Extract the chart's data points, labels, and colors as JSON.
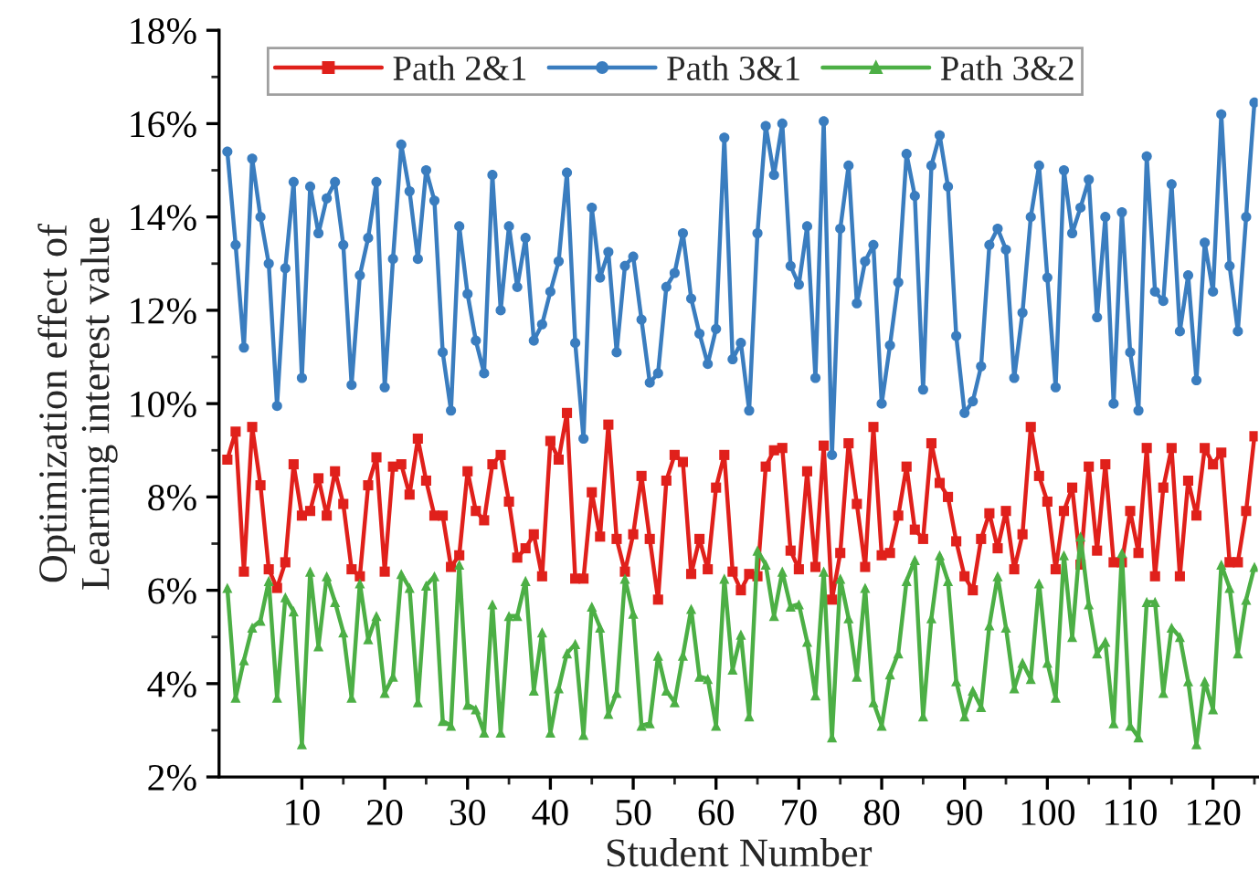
{
  "chart_data": {
    "type": "line",
    "xlabel": "Student Number",
    "ylabel": "Optimization effect of\nLearning interest value",
    "x": [
      1,
      2,
      3,
      4,
      5,
      6,
      7,
      8,
      9,
      10,
      11,
      12,
      13,
      14,
      15,
      16,
      17,
      18,
      19,
      20,
      21,
      22,
      23,
      24,
      25,
      26,
      27,
      28,
      29,
      30,
      31,
      32,
      33,
      34,
      35,
      36,
      37,
      38,
      39,
      40,
      41,
      42,
      43,
      44,
      45,
      46,
      47,
      48,
      49,
      50,
      51,
      52,
      53,
      54,
      55,
      56,
      57,
      58,
      59,
      60,
      61,
      62,
      63,
      64,
      65,
      66,
      67,
      68,
      69,
      70,
      71,
      72,
      73,
      74,
      75,
      76,
      77,
      78,
      79,
      80,
      81,
      82,
      83,
      84,
      85,
      86,
      87,
      88,
      89,
      90,
      91,
      92,
      93,
      94,
      95,
      96,
      97,
      98,
      99,
      100,
      101,
      102,
      103,
      104,
      105,
      106,
      107,
      108,
      109,
      110,
      111,
      112,
      113,
      114,
      115,
      116,
      117,
      118,
      119,
      120,
      121,
      122,
      123,
      124,
      125
    ],
    "series": [
      {
        "name": "Path 2&1",
        "color": "#e0201b",
        "marker": "square",
        "values": [
          8.8,
          9.4,
          6.4,
          9.5,
          8.25,
          6.45,
          6.05,
          6.6,
          8.7,
          7.6,
          7.7,
          8.4,
          7.6,
          8.55,
          7.85,
          6.45,
          6.3,
          8.25,
          8.85,
          6.4,
          8.65,
          8.7,
          8.05,
          9.25,
          8.35,
          7.6,
          7.6,
          6.5,
          6.75,
          8.55,
          7.7,
          7.5,
          8.7,
          8.9,
          7.9,
          6.7,
          6.9,
          7.2,
          6.3,
          9.2,
          8.8,
          9.8,
          6.25,
          6.25,
          8.1,
          7.15,
          9.55,
          7.1,
          6.4,
          7.2,
          8.45,
          7.1,
          5.8,
          8.35,
          8.9,
          8.75,
          6.35,
          7.1,
          6.45,
          8.2,
          8.9,
          6.4,
          6.0,
          6.35,
          6.3,
          8.65,
          9.0,
          9.05,
          6.85,
          6.45,
          8.55,
          6.5,
          9.1,
          5.8,
          6.8,
          9.15,
          7.85,
          6.5,
          9.5,
          6.75,
          6.8,
          7.6,
          8.65,
          7.3,
          7.1,
          9.15,
          8.3,
          8.0,
          7.05,
          6.3,
          6.0,
          7.1,
          7.65,
          6.9,
          7.7,
          6.45,
          7.2,
          9.5,
          8.45,
          7.9,
          6.45,
          7.7,
          8.2,
          6.55,
          8.65,
          6.85,
          8.7,
          6.6,
          6.6,
          7.7,
          6.8,
          9.05,
          6.3,
          8.2,
          9.05,
          6.3,
          8.35,
          7.6,
          9.05,
          8.7,
          8.95,
          6.6,
          6.6,
          7.7,
          9.3
        ]
      },
      {
        "name": "Path 3&1",
        "color": "#3a7dbf",
        "marker": "circle",
        "values": [
          15.4,
          13.4,
          11.2,
          15.25,
          14.0,
          13.0,
          9.95,
          12.9,
          14.75,
          10.55,
          14.65,
          13.65,
          14.4,
          14.75,
          13.4,
          10.4,
          12.75,
          13.55,
          14.75,
          10.35,
          13.1,
          15.55,
          14.55,
          13.1,
          15.0,
          14.35,
          11.1,
          9.85,
          13.8,
          12.35,
          11.35,
          10.65,
          14.9,
          12.0,
          13.8,
          12.5,
          13.55,
          11.35,
          11.7,
          12.4,
          13.05,
          14.95,
          11.3,
          9.25,
          14.2,
          12.7,
          13.25,
          11.1,
          12.95,
          13.15,
          11.8,
          10.45,
          10.65,
          12.5,
          12.8,
          13.65,
          12.25,
          11.5,
          10.85,
          11.6,
          15.7,
          10.95,
          11.3,
          9.85,
          13.65,
          15.95,
          14.9,
          16.0,
          12.95,
          12.55,
          13.8,
          10.55,
          16.05,
          8.9,
          13.75,
          15.1,
          12.15,
          13.05,
          13.4,
          10.0,
          11.25,
          12.6,
          15.35,
          14.45,
          10.3,
          15.1,
          15.75,
          14.65,
          11.45,
          9.8,
          10.05,
          10.8,
          13.4,
          13.75,
          13.3,
          10.55,
          11.95,
          14.0,
          15.1,
          12.7,
          10.35,
          15.0,
          13.65,
          14.2,
          14.8,
          11.85,
          14.0,
          10.0,
          14.1,
          11.1,
          9.85,
          15.3,
          12.4,
          12.2,
          14.7,
          11.55,
          12.75,
          10.5,
          13.45,
          12.4,
          16.2,
          12.95,
          11.55,
          14.0,
          16.45
        ]
      },
      {
        "name": "Path 3&2",
        "color": "#4caf45",
        "marker": "triangle",
        "values": [
          6.05,
          3.7,
          4.5,
          5.2,
          5.35,
          6.2,
          3.7,
          5.85,
          5.55,
          2.7,
          6.4,
          4.8,
          6.3,
          5.75,
          5.1,
          3.7,
          6.15,
          4.95,
          5.45,
          3.8,
          4.15,
          6.35,
          6.05,
          3.6,
          6.1,
          6.3,
          3.2,
          3.1,
          6.55,
          3.55,
          3.45,
          2.95,
          5.7,
          2.95,
          5.45,
          5.45,
          6.2,
          3.85,
          5.1,
          2.95,
          3.9,
          4.65,
          4.85,
          2.9,
          5.65,
          5.2,
          3.35,
          3.8,
          6.25,
          5.5,
          3.1,
          3.15,
          4.6,
          3.85,
          3.6,
          4.6,
          5.6,
          4.15,
          4.1,
          3.1,
          6.25,
          4.3,
          5.05,
          3.3,
          6.85,
          6.55,
          5.45,
          6.4,
          5.65,
          5.7,
          4.9,
          3.75,
          6.4,
          2.85,
          6.25,
          5.4,
          4.15,
          6.05,
          3.6,
          3.1,
          4.2,
          4.65,
          6.2,
          6.65,
          3.3,
          5.4,
          6.75,
          6.2,
          4.05,
          3.3,
          3.85,
          3.5,
          5.25,
          6.3,
          5.2,
          3.9,
          4.45,
          4.1,
          6.15,
          4.45,
          3.7,
          6.75,
          5.0,
          7.15,
          5.7,
          4.65,
          4.9,
          3.15,
          6.8,
          3.1,
          2.85,
          5.75,
          5.75,
          3.8,
          5.2,
          5.0,
          4.05,
          2.7,
          4.05,
          3.45,
          6.55,
          6.05,
          4.65,
          5.8,
          6.5
        ]
      }
    ],
    "xlim": [
      0,
      125.4
    ],
    "xticks": [
      10,
      20,
      30,
      40,
      50,
      60,
      70,
      80,
      90,
      100,
      110,
      120
    ],
    "ylim": [
      2,
      18
    ],
    "yticks": [
      {
        "value": 2,
        "label": "2%"
      },
      {
        "value": 4,
        "label": "4%"
      },
      {
        "value": 6,
        "label": "6%"
      },
      {
        "value": 8,
        "label": "8%"
      },
      {
        "value": 10,
        "label": "10%"
      },
      {
        "value": 12,
        "label": "12%"
      },
      {
        "value": 14,
        "label": "14%"
      },
      {
        "value": 16,
        "label": "16%"
      },
      {
        "value": 18,
        "label": "18%"
      }
    ],
    "legend": "top left",
    "line_style": "solid",
    "grid": false
  }
}
